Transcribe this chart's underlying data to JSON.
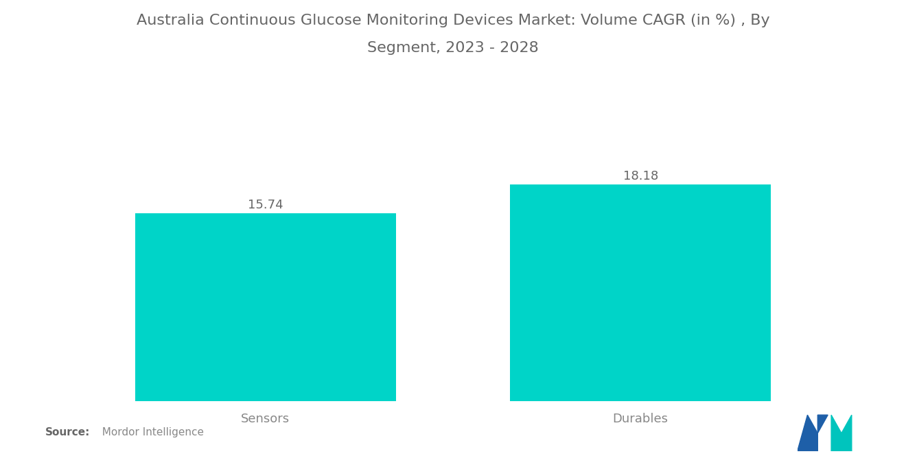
{
  "title_line1": "Australia Continuous Glucose Monitoring Devices Market: Volume CAGR (in %) , By",
  "title_line2": "Segment, 2023 - 2028",
  "categories": [
    "Sensors",
    "Durables"
  ],
  "values": [
    15.74,
    18.18
  ],
  "bar_color": "#00D4C8",
  "value_labels": [
    "15.74",
    "18.18"
  ],
  "background_color": "#ffffff",
  "title_fontsize": 16,
  "label_fontsize": 13,
  "value_fontsize": 13,
  "source_bold": "Source:",
  "source_normal": "  Mordor Intelligence",
  "source_fontsize": 11,
  "ylim": [
    0,
    21
  ],
  "bar_positions": [
    0.27,
    0.73
  ],
  "bar_width": 0.32,
  "logo_blue": "#1E5FA8",
  "logo_teal": "#00C4BD"
}
